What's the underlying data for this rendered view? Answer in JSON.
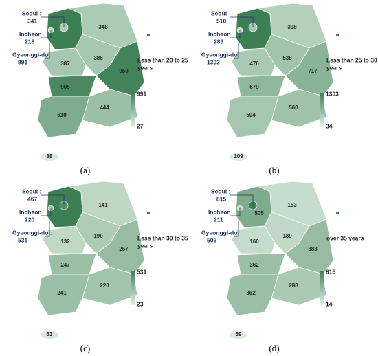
{
  "color_max": "#3d7f55",
  "color_min": "#e4f1e4",
  "panels": [
    {
      "caption": "(a)",
      "legend_title": [
        "Less than 20 to 25",
        "years"
      ],
      "legend_max": 991,
      "legend_min": 27,
      "callouts": [
        {
          "name": "Seoul :",
          "value": 341
        },
        {
          "name": "Incheon",
          "value": 218
        },
        {
          "name": "Gyeonggi-do",
          "value": 991
        }
      ],
      "regions": [
        348,
        386,
        387,
        950,
        905,
        444,
        610,
        88
      ]
    },
    {
      "caption": "(b)",
      "legend_title": [
        "Less than 25 to 30",
        "years"
      ],
      "legend_max": 1303,
      "legend_min": 34,
      "callouts": [
        {
          "name": "Seoul",
          "value": 510
        },
        {
          "name": "Incheon",
          "value": 289
        },
        {
          "name": "Gyeonggi-do",
          "value": 1303
        }
      ],
      "regions": [
        398,
        538,
        476,
        717,
        679,
        560,
        504,
        109
      ]
    },
    {
      "caption": "(c)",
      "legend_title": [
        "Less than 30 to 35",
        "years"
      ],
      "legend_max": 531,
      "legend_min": 23,
      "callouts": [
        {
          "name": "Seoul :",
          "value": 467
        },
        {
          "name": "Incheon",
          "value": 220
        },
        {
          "name": "Gyeonggi-do :",
          "value": 531
        }
      ],
      "regions": [
        141,
        190,
        132,
        257,
        247,
        220,
        241,
        63
      ]
    },
    {
      "caption": "(d)",
      "legend_title": [
        "over 35 years"
      ],
      "legend_max": 815,
      "legend_min": 14,
      "callouts": [
        {
          "name": "Seoul :",
          "value": 815
        },
        {
          "name": "Incheon",
          "value": 211
        },
        {
          "name": "Gyeonggi-do",
          "value": 505
        }
      ],
      "regions": [
        153,
        189,
        160,
        383,
        362,
        288,
        362,
        59
      ],
      "inner_label": 505
    }
  ]
}
